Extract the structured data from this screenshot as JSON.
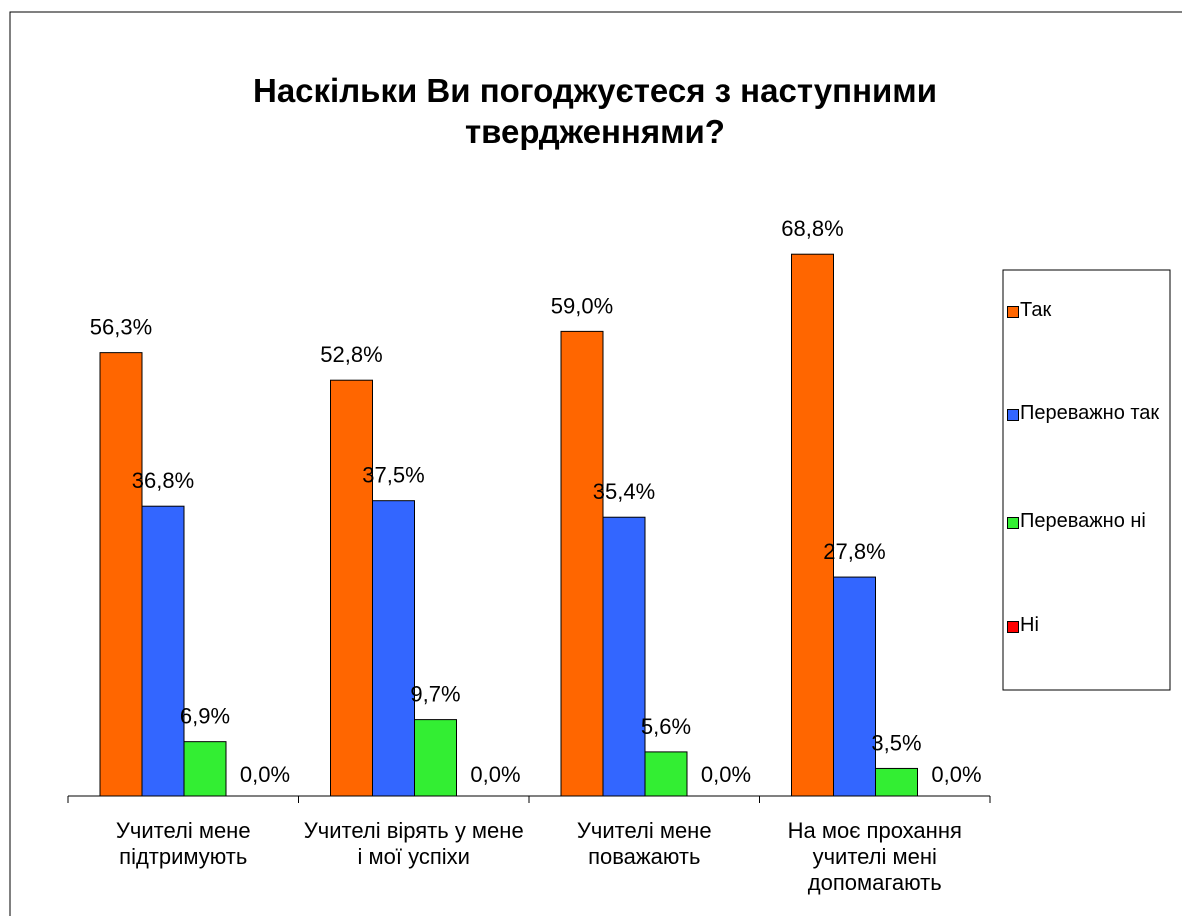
{
  "chart_data": {
    "type": "bar",
    "title": "Наскільки Ви погоджуєтеся з наступними твердженнями?",
    "categories": [
      "Учителі мене підтримують",
      "Учителі вірять у мене і мої успіхи",
      "Учителі мене поважають",
      "На моє прохання учителі мені допомагають"
    ],
    "series": [
      {
        "name": "Так",
        "color": "#ff6600",
        "values": [
          56.3,
          52.8,
          59.0,
          68.8
        ],
        "value_labels": [
          "56,3%",
          "52,8%",
          "59,0%",
          "68,8%"
        ]
      },
      {
        "name": "Переважно так",
        "color": "#3366ff",
        "values": [
          36.8,
          37.5,
          35.4,
          27.8
        ],
        "value_labels": [
          "36,8%",
          "37,5%",
          "35,4%",
          "27,8%"
        ]
      },
      {
        "name": "Переважно ні",
        "color": "#33ee33",
        "values": [
          6.9,
          9.7,
          5.6,
          3.5
        ],
        "value_labels": [
          "6,9%",
          "9,7%",
          "5,6%",
          "3,5%"
        ]
      },
      {
        "name": "Ні",
        "color": "#ff0000",
        "values": [
          0.0,
          0.0,
          0.0,
          0.0
        ],
        "value_labels": [
          "0,0%",
          "0,0%",
          "0,0%",
          "0,0%"
        ]
      }
    ],
    "ylim": [
      0,
      80
    ],
    "legend": "right"
  }
}
